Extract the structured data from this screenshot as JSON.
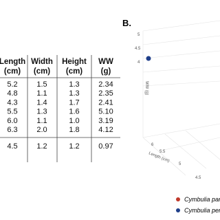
{
  "table": {
    "headers": [
      [
        "Length",
        "(cm)"
      ],
      [
        "Width",
        "(cm)"
      ],
      [
        "Height",
        "(cm)"
      ],
      [
        "WW",
        "(g)"
      ]
    ],
    "rows": [
      [
        "5.2",
        "1.5",
        "1.3",
        "2.34"
      ],
      [
        "4.8",
        "1.1",
        "1.3",
        "2.35"
      ],
      [
        "4.3",
        "1.4",
        "1.7",
        "2.41"
      ],
      [
        "5.5",
        "1.3",
        "1.6",
        "5.10"
      ],
      [
        "6.0",
        "1.1",
        "1.0",
        "3.19"
      ],
      [
        "6.3",
        "2.0",
        "1.8",
        "4.12"
      ]
    ],
    "summary": [
      "4.5",
      "1.2",
      "1.2",
      "0.97"
    ]
  },
  "plot": {
    "panel": "B.",
    "z_ticks": [
      "5",
      "4.5",
      "4"
    ],
    "z_label": "WW (g)",
    "x_ticks": [
      "6",
      "5.5",
      "5",
      "4.5"
    ],
    "x_label": "Length (cm)",
    "legend": [
      "Cymbulia parvia",
      "Cymbulia peron"
    ]
  }
}
